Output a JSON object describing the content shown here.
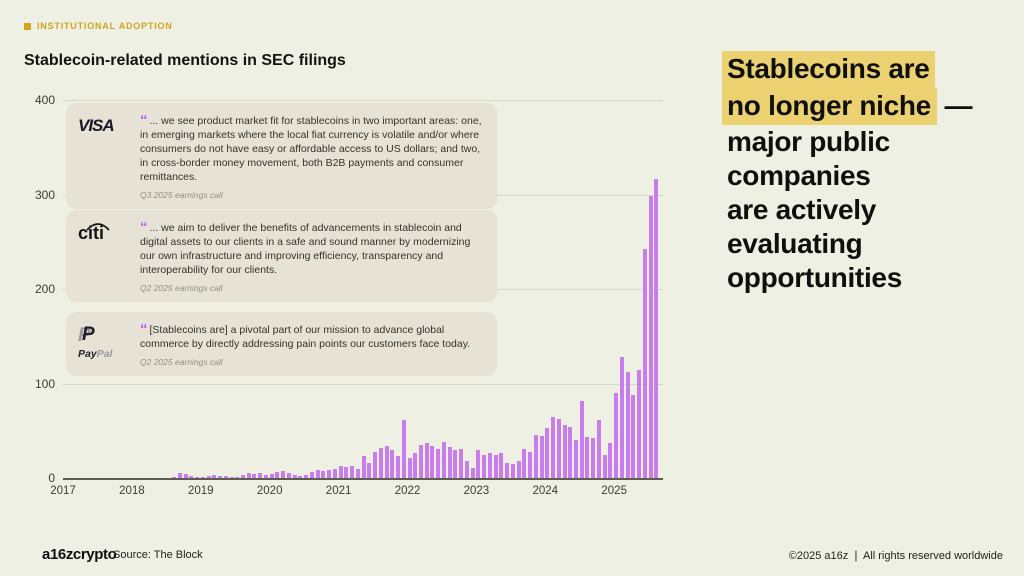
{
  "badge": {
    "label": "INSTITUTIONAL ADOPTION",
    "color": "#d3a31f"
  },
  "title": "Stablecoin-related mentions in SEC filings",
  "ui": {
    "quote_mark": "“",
    "highlight_color": "#ecd170",
    "bar_color": "#c97dec"
  },
  "headline": {
    "lines": [
      {
        "segments": [
          {
            "text": "Stablecoins are",
            "highlight": true
          }
        ]
      },
      {
        "segments": [
          {
            "text": "no longer niche",
            "highlight": true
          },
          {
            "text": " —",
            "highlight": false
          }
        ]
      },
      {
        "segments": [
          {
            "text": "major public",
            "highlight": false
          }
        ]
      },
      {
        "segments": [
          {
            "text": "companies",
            "highlight": false
          }
        ]
      },
      {
        "segments": [
          {
            "text": "are actively",
            "highlight": false
          }
        ]
      },
      {
        "segments": [
          {
            "text": "evaluating",
            "highlight": false
          }
        ]
      },
      {
        "segments": [
          {
            "text": "opportunities",
            "highlight": false
          }
        ]
      }
    ]
  },
  "quotes": [
    {
      "company": "Visa",
      "logo_text": "VISA",
      "quote": "... we see product market fit for stablecoins in two important areas: one, in emerging markets where the local fiat currency is volatile and/or where consumers do not have easy or affordable access to US dollars; and two, in cross-border money movement, both B2B payments and consumer remittances.",
      "attribution": "Q3 2025 earnings call"
    },
    {
      "company": "Citi",
      "logo_text": "citi",
      "quote": "... we aim to deliver the benefits of advancements in stablecoin and digital assets to our clients in a safe and sound manner by modernizing our own infrastructure and improving efficiency, transparency and interoperability for our clients.",
      "attribution": "Q2 2025 earnings call"
    },
    {
      "company": "PayPal",
      "logo_mark": "P",
      "logo_text_dark": "Pay",
      "logo_text_light": "Pal",
      "quote": "[Stablecoins are] a pivotal part of our mission to advance global commerce by directly addressing pain points our customers face today.",
      "attribution": "Q2 2025 earnings call"
    }
  ],
  "chart_data": {
    "type": "bar",
    "title": "Stablecoin-related mentions in SEC filings",
    "xlabel": "",
    "ylabel": "",
    "ylim": [
      0,
      400
    ],
    "y_ticks": [
      0,
      100,
      200,
      300,
      400
    ],
    "x_tick_labels": [
      "2017",
      "2018",
      "2019",
      "2020",
      "2021",
      "2022",
      "2023",
      "2024",
      "2025"
    ],
    "grid": true,
    "legend": false,
    "bar_color": "#c97dec",
    "granularity": "monthly",
    "range": {
      "start": "2017-01",
      "end": "2025-08"
    },
    "year_order": [
      "2017",
      "2018",
      "2019",
      "2020",
      "2021",
      "2022",
      "2023",
      "2024",
      "2025"
    ],
    "values_by_year": {
      "2017": [
        0,
        0,
        0,
        0,
        0,
        0,
        0,
        0,
        0,
        0,
        0,
        0
      ],
      "2018": [
        0,
        0,
        0,
        0,
        0,
        0,
        0,
        1,
        5,
        4,
        2,
        1
      ],
      "2019": [
        1,
        2,
        3,
        2,
        2,
        1,
        1,
        3,
        5,
        4,
        5,
        3
      ],
      "2020": [
        4,
        6,
        7,
        5,
        3,
        2,
        3,
        6,
        8,
        7,
        8,
        10
      ],
      "2021": [
        13,
        12,
        13,
        10,
        23,
        16,
        28,
        32,
        34,
        30,
        23,
        61
      ],
      "2022": [
        21,
        27,
        35,
        37,
        34,
        31,
        38,
        33,
        30,
        31,
        18,
        11
      ],
      "2023": [
        30,
        24,
        27,
        24,
        27,
        16,
        15,
        18,
        31,
        28,
        45,
        44
      ],
      "2024": [
        53,
        65,
        62,
        56,
        54,
        40,
        81,
        43,
        42,
        61,
        24,
        37
      ],
      "2025": [
        90,
        128,
        112,
        88,
        114,
        242,
        298,
        316
      ]
    }
  },
  "footer": {
    "logo": "a16zcrypto",
    "source": "Source: The Block",
    "copyright": "©2025 a16z ❘ All rights reserved worldwide"
  }
}
